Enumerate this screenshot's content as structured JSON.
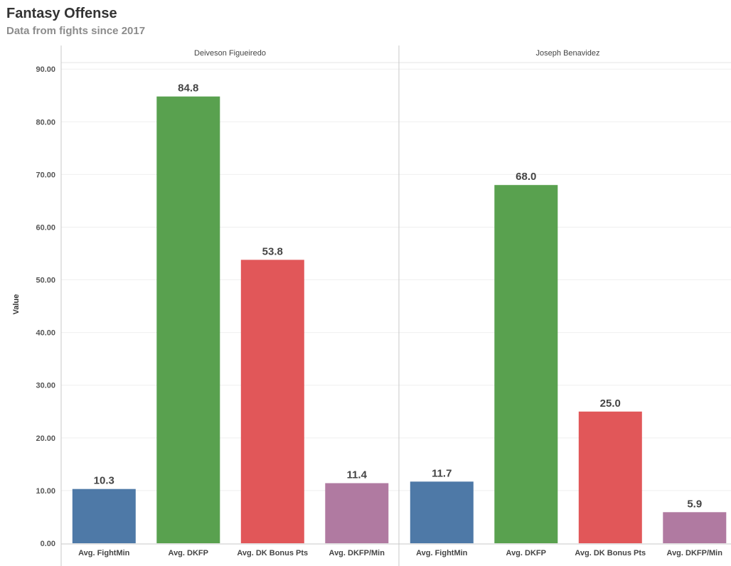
{
  "header": {
    "title": "Fantasy Offense",
    "subtitle": "Data from fights since 2017"
  },
  "chart_data": {
    "type": "bar",
    "title": "Fantasy Offense",
    "subtitle": "Data from fights since 2017",
    "ylabel": "Value",
    "xlabel": "",
    "ylim": [
      0,
      90
    ],
    "yticks": [
      "90.00",
      "80.00",
      "70.00",
      "60.00",
      "50.00",
      "40.00",
      "30.00",
      "20.00",
      "10.00",
      "0.00"
    ],
    "categories": [
      "Avg. FightMin",
      "Avg. DKFP",
      "Avg. DK Bonus Pts",
      "Avg. DKFP/Min"
    ],
    "colors": [
      "#4e79a7",
      "#59a14f",
      "#e15759",
      "#b07aa1"
    ],
    "grid": true,
    "legend": "none",
    "panels": [
      {
        "name": "Deiveson Figueiredo",
        "values": [
          10.3,
          84.8,
          53.8,
          11.4
        ],
        "labels": [
          "10.3",
          "84.8",
          "53.8",
          "11.4"
        ]
      },
      {
        "name": "Joseph Benavidez",
        "values": [
          11.7,
          68.0,
          25.0,
          5.9
        ],
        "labels": [
          "11.7",
          "68.0",
          "25.0",
          "5.9"
        ]
      }
    ]
  }
}
